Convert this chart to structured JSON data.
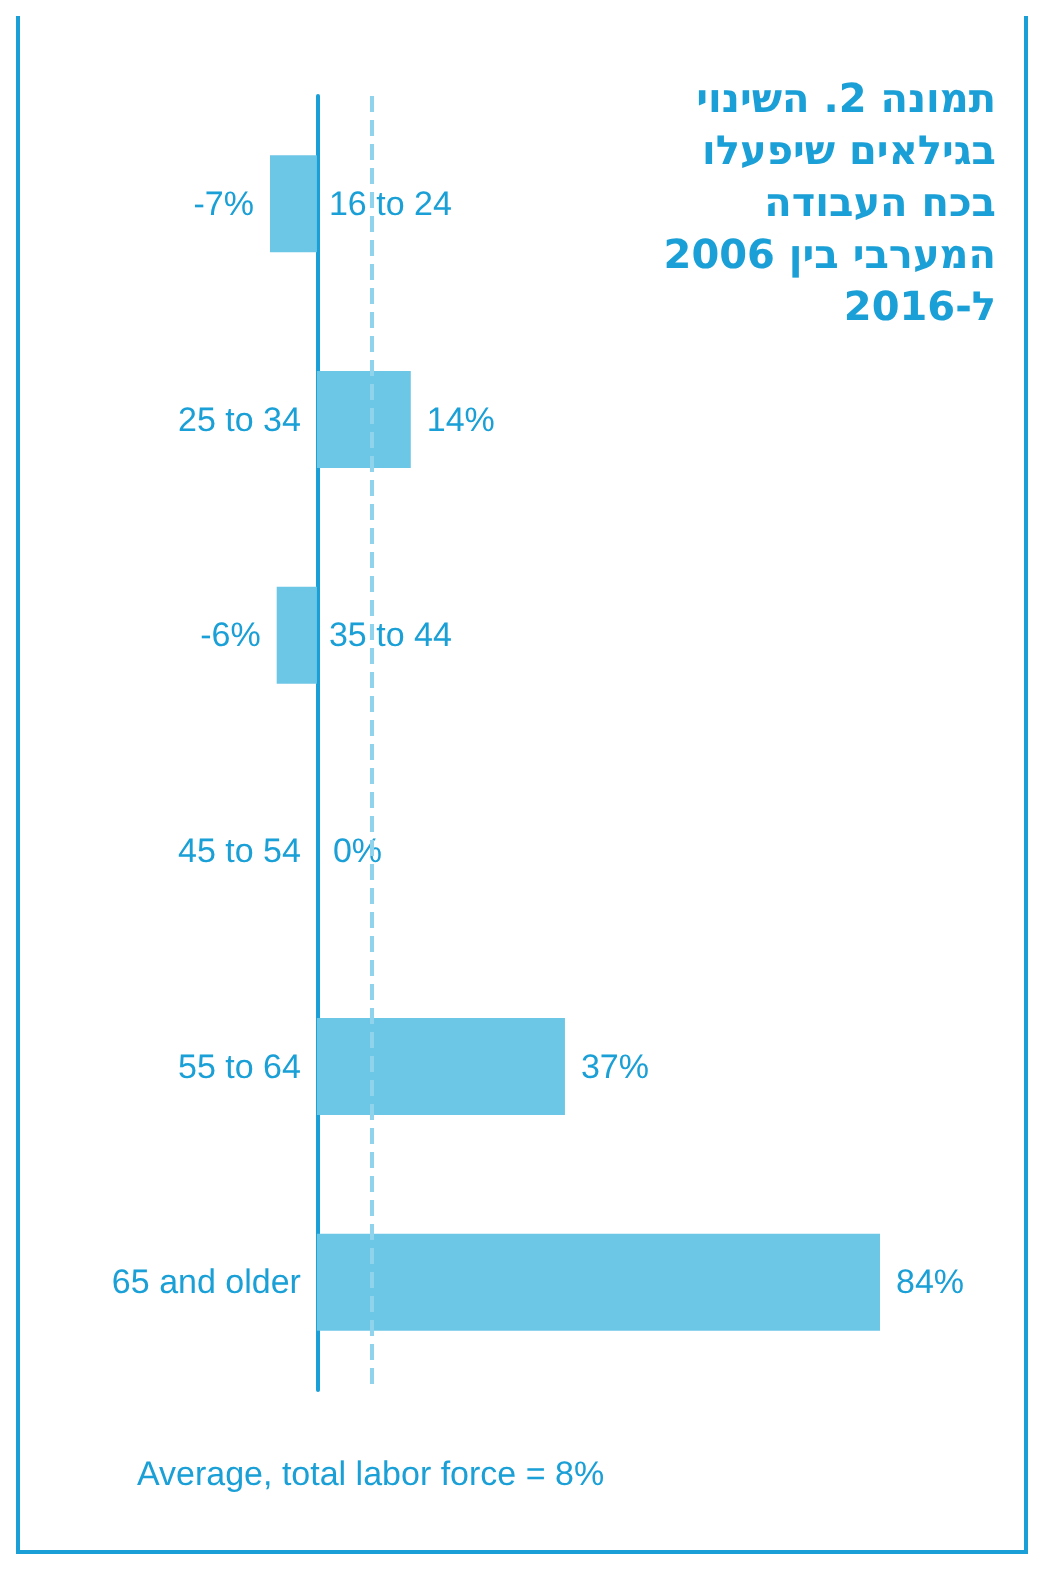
{
  "chart_data": {
    "type": "bar",
    "orientation": "horizontal",
    "title": "תמונה 2. השינוי בגילאים שיפעלו בכח העבודה המערבי בין 2006 ל-2016",
    "categories": [
      "16 to 24",
      "25 to 34",
      "35 to 44",
      "45 to 54",
      "55 to 64",
      "65 and older"
    ],
    "values": [
      -7,
      14,
      -6,
      0,
      37,
      84
    ],
    "value_labels": [
      "-7%",
      "14%",
      "-6%",
      "0%",
      "37%",
      "84%"
    ],
    "color": "#6cc6e6",
    "ref_lines": [
      {
        "axis": "x",
        "value": 8,
        "label": "Average, total labor force = 8%",
        "color": "#8fd3ec",
        "line_style": "dashed"
      }
    ],
    "grid": false
  }
}
